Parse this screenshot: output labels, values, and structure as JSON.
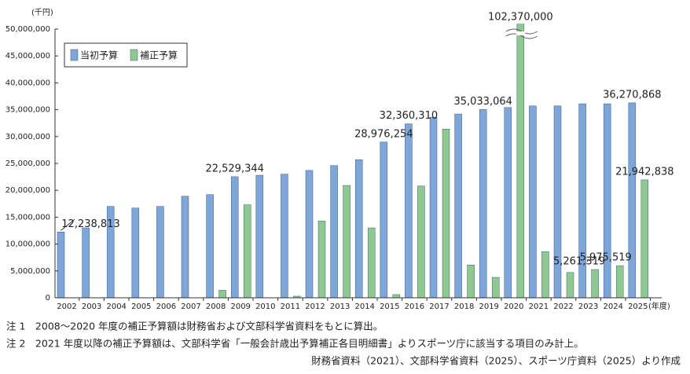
{
  "chart_data": {
    "type": "bar",
    "y_unit": "(千円)",
    "x_unit": "(年度)",
    "categories": [
      "2002",
      "2003",
      "2004",
      "2005",
      "2006",
      "2007",
      "2008",
      "2009",
      "2010",
      "2011",
      "2012",
      "2013",
      "2014",
      "2015",
      "2016",
      "2017",
      "2018",
      "2019",
      "2020",
      "2021",
      "2022",
      "2023",
      "2024",
      "2025"
    ],
    "series": [
      {
        "name": "当初予算",
        "color": "#7ea6d8",
        "values": [
          12238813,
          13000000,
          17000000,
          16700000,
          17000000,
          18900000,
          19200000,
          22529344,
          22800000,
          23000000,
          23700000,
          24600000,
          25700000,
          28976254,
          32360310,
          33600000,
          34200000,
          35033064,
          35400000,
          35700000,
          35700000,
          36100000,
          36100000,
          36270868
        ],
        "value_labels": [
          "12,238,813",
          null,
          null,
          null,
          null,
          null,
          null,
          "22,529,344",
          null,
          null,
          null,
          null,
          null,
          "28,976,254",
          "32,360,310",
          null,
          null,
          "35,033,064",
          null,
          null,
          null,
          null,
          null,
          "36,270,868"
        ]
      },
      {
        "name": "補正予算",
        "color": "#8fc98f",
        "values": [
          null,
          null,
          null,
          null,
          null,
          null,
          1400000,
          17300000,
          null,
          300000,
          14300000,
          20900000,
          13000000,
          600000,
          20800000,
          31400000,
          6100000,
          3800000,
          102370000,
          8600000,
          4700000,
          5261319,
          5975519,
          21942838
        ],
        "value_labels": [
          null,
          null,
          null,
          null,
          null,
          null,
          null,
          null,
          null,
          null,
          null,
          null,
          null,
          null,
          null,
          null,
          null,
          null,
          "102,370,000",
          null,
          null,
          "5,261,319",
          "5,975,519",
          "21,942,838"
        ]
      }
    ],
    "ylim": [
      0,
      50000000
    ],
    "yticks": [
      {
        "value": 0,
        "label": "0"
      },
      {
        "value": 5000000,
        "label": "5,000,000"
      },
      {
        "value": 10000000,
        "label": "10,000,000"
      },
      {
        "value": 15000000,
        "label": "15,000,000"
      },
      {
        "value": 20000000,
        "label": "20,000,000"
      },
      {
        "value": 25000000,
        "label": "25,000,000"
      },
      {
        "value": 30000000,
        "label": "30,000,000"
      },
      {
        "value": 35000000,
        "label": "35,000,000"
      },
      {
        "value": 40000000,
        "label": "40,000,000"
      },
      {
        "value": 45000000,
        "label": "45,000,000"
      },
      {
        "value": 50000000,
        "label": "50,000,000"
      }
    ],
    "legend": "upper left",
    "notes": [
      "注 1　2008～2020 年度の補正予算額は財務省および文部科学省資料をもとに算出。",
      "注 2　2021 年度以降の補正予算額は、文部科学省「一般会計歳出予算補正各目明細書」よりスポーツ庁に該当する項目のみ計上。",
      "財務省資料（2021）、文部科学省資料（2025）、スポーツ庁資料（2025）より作成"
    ]
  }
}
